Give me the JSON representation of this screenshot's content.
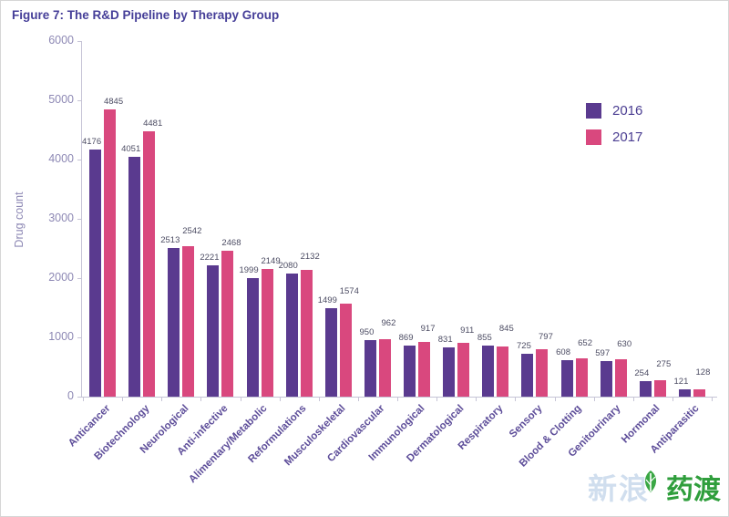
{
  "title": "Figure 7:  The R&D Pipeline by Therapy Group",
  "chart_data": {
    "type": "bar",
    "title": "Figure 7: The R&D Pipeline by Therapy Group",
    "xlabel": "",
    "ylabel": "Drug count",
    "ylim": [
      0,
      6000
    ],
    "yticks": [
      0,
      1000,
      2000,
      3000,
      4000,
      5000,
      6000
    ],
    "grid": false,
    "legend_position": "top-right",
    "categories": [
      "Anticancer",
      "Biotechnology",
      "Neurological",
      "Anti-infective",
      "Alimentary/Metabolic",
      "Reformulations",
      "Musculoskeletal",
      "Cardiovascular",
      "Immunological",
      "Dermatological",
      "Respiratory",
      "Sensory",
      "Blood & Clotting",
      "Genitourinary",
      "Hormonal",
      "Antiparasitic"
    ],
    "series": [
      {
        "name": "2016",
        "color": "#5a3a8f",
        "values": [
          4176,
          4051,
          2513,
          2221,
          1999,
          2080,
          1499,
          950,
          869,
          831,
          855,
          725,
          608,
          597,
          254,
          121
        ]
      },
      {
        "name": "2017",
        "color": "#d9487e",
        "values": [
          4845,
          4481,
          2542,
          2468,
          2149,
          2132,
          1574,
          962,
          917,
          911,
          845,
          797,
          652,
          630,
          275,
          128
        ]
      }
    ]
  },
  "watermark": {
    "ghost": "新浪",
    "brand": "药渡",
    "leaf_icon": "leaf-icon"
  }
}
